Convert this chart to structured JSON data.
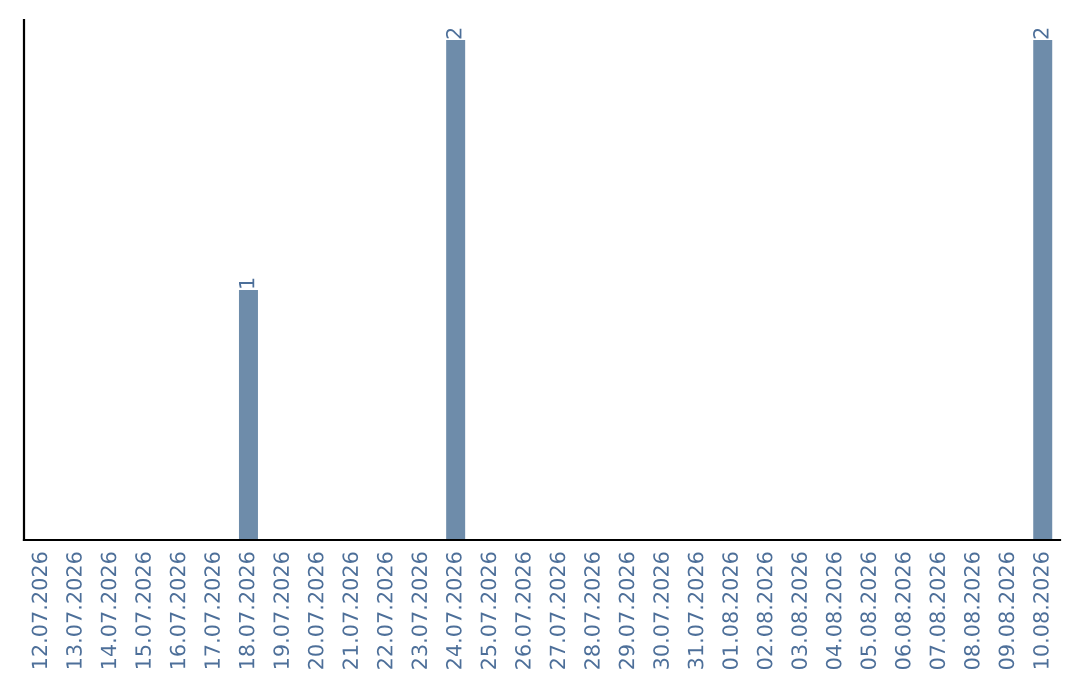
{
  "chart_data": {
    "type": "bar",
    "categories": [
      "12.07.2026",
      "13.07.2026",
      "14.07.2026",
      "15.07.2026",
      "16.07.2026",
      "17.07.2026",
      "18.07.2026",
      "19.07.2026",
      "20.07.2026",
      "21.07.2026",
      "22.07.2026",
      "23.07.2026",
      "24.07.2026",
      "25.07.2026",
      "26.07.2026",
      "27.07.2026",
      "28.07.2026",
      "29.07.2026",
      "30.07.2026",
      "31.07.2026",
      "01.08.2026",
      "02.08.2026",
      "03.08.2026",
      "04.08.2026",
      "05.08.2026",
      "06.08.2026",
      "07.08.2026",
      "08.08.2026",
      "09.08.2026",
      "10.08.2026"
    ],
    "values": [
      0,
      0,
      0,
      0,
      0,
      0,
      1,
      0,
      0,
      0,
      0,
      0,
      2,
      0,
      0,
      0,
      0,
      0,
      0,
      0,
      0,
      0,
      0,
      0,
      0,
      0,
      0,
      0,
      0,
      2
    ],
    "value_labels": [
      null,
      null,
      null,
      null,
      null,
      null,
      "1",
      null,
      null,
      null,
      null,
      null,
      "2",
      null,
      null,
      null,
      null,
      null,
      null,
      null,
      null,
      null,
      null,
      null,
      null,
      null,
      null,
      null,
      null,
      "2"
    ],
    "color": "#6e8caa",
    "tick_labels": "x",
    "grid": false,
    "legend": false
  }
}
